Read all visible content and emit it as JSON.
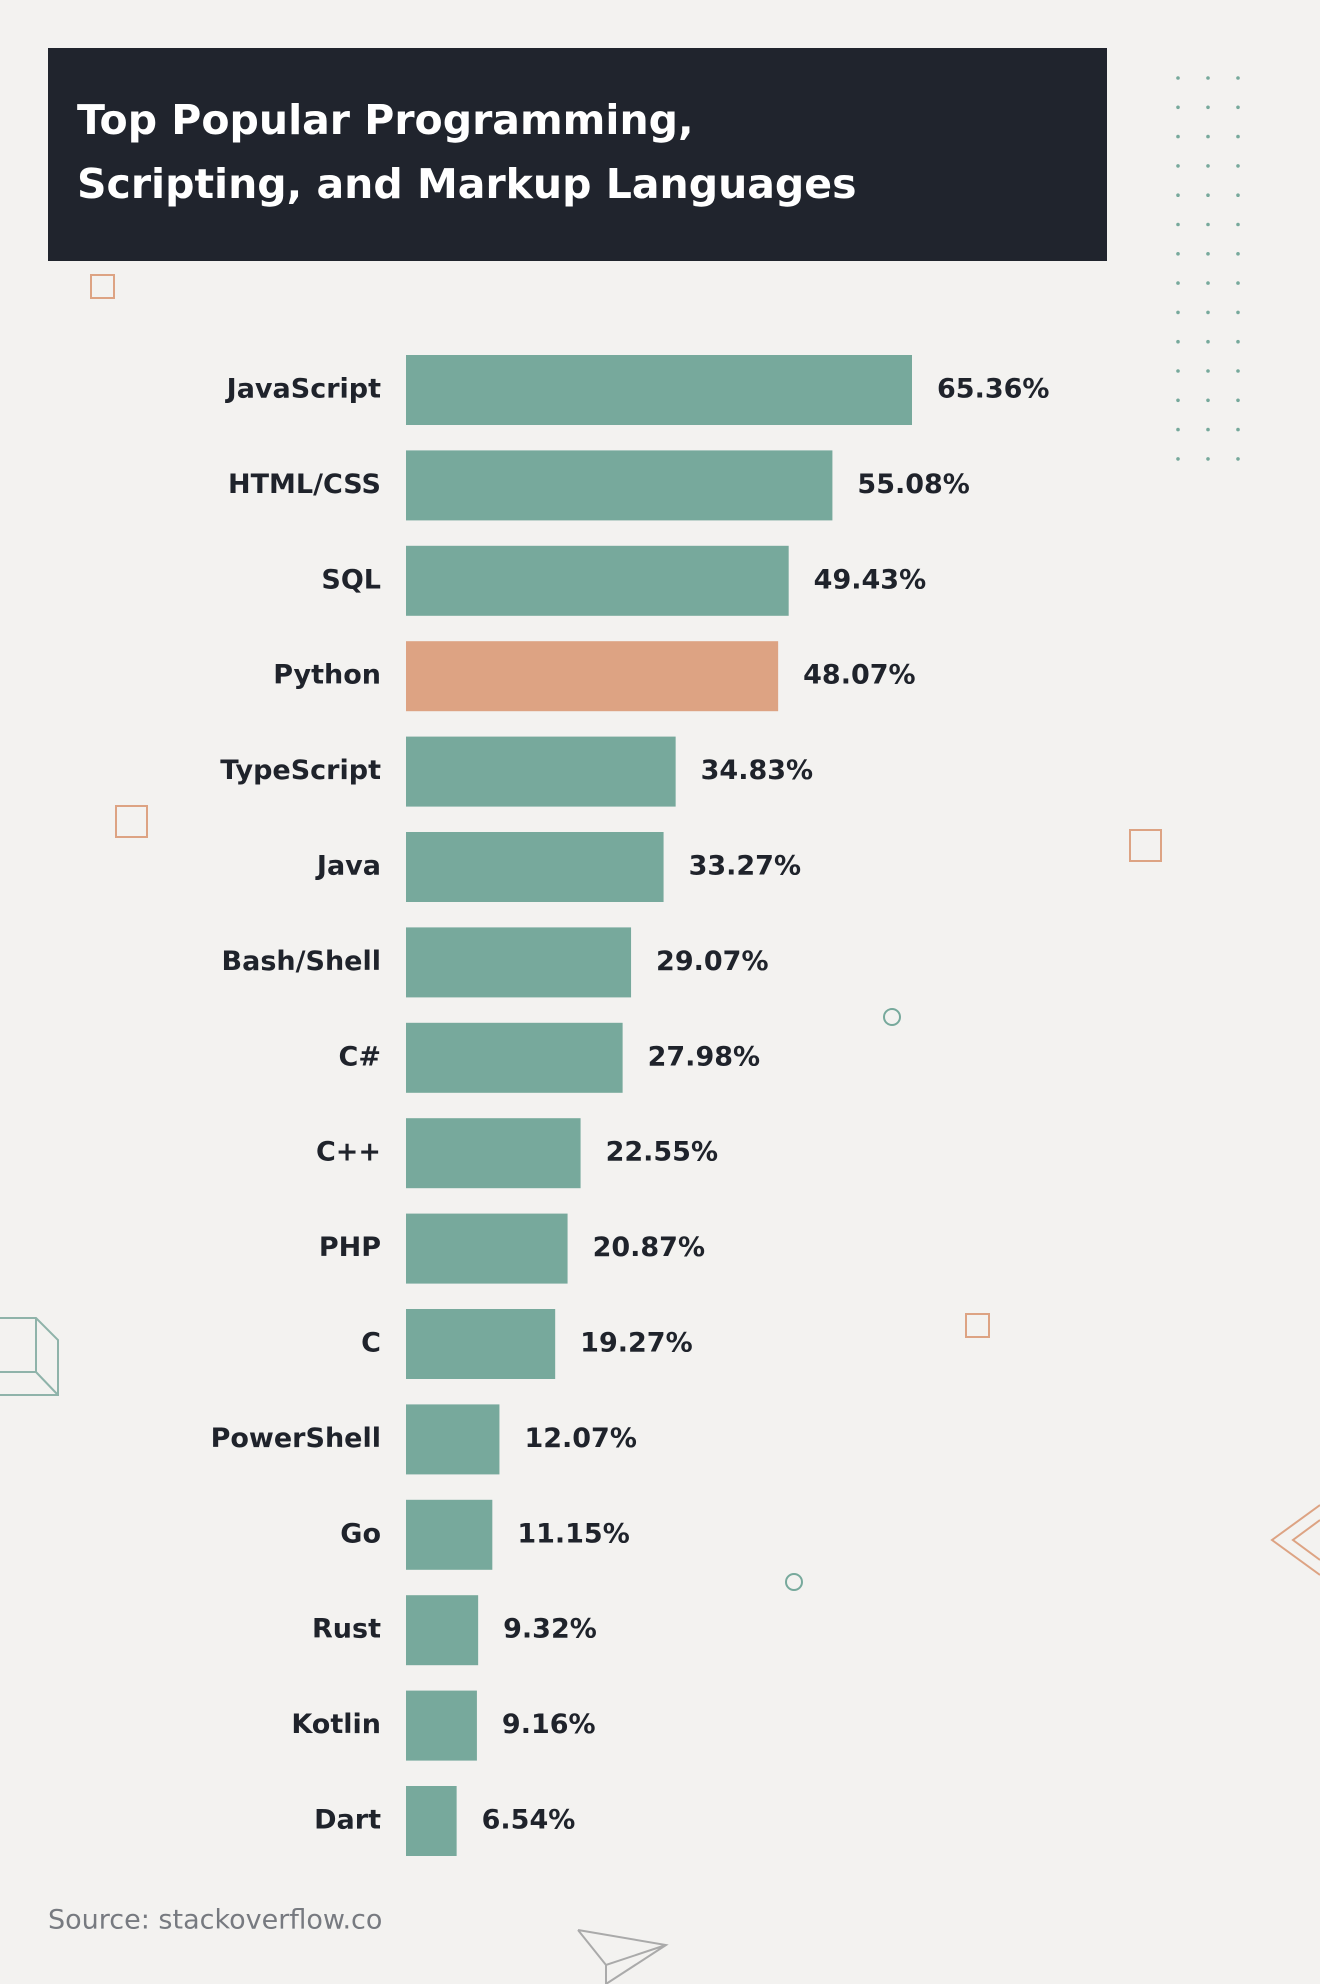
{
  "chart_data": {
    "type": "hbar",
    "title": [
      "Top Popular Programming,",
      "Scripting, and Markup Languages"
    ],
    "categories": [
      "JavaScript",
      "HTML/CSS",
      "SQL",
      "Python",
      "TypeScript",
      "Java",
      "Bash/Shell",
      "C#",
      "C++",
      "PHP",
      "C",
      "PowerShell",
      "Go",
      "Rust",
      "Kotlin",
      "Dart"
    ],
    "values": [
      65.36,
      55.08,
      49.43,
      48.07,
      34.83,
      33.27,
      29.07,
      27.98,
      22.55,
      20.87,
      19.27,
      12.07,
      11.15,
      9.32,
      9.16,
      6.54
    ],
    "value_labels": [
      "65.36%",
      "55.08%",
      "49.43%",
      "48.07%",
      "34.83%",
      "33.27%",
      "29.07%",
      "27.98%",
      "22.55%",
      "20.87%",
      "19.27%",
      "12.07%",
      "11.15%",
      "9.32%",
      "9.16%",
      "6.54%"
    ],
    "colors": [
      "#77a99c",
      "#77a99c",
      "#77a99c",
      "#dda383",
      "#77a99c",
      "#77a99c",
      "#77a99c",
      "#77a99c",
      "#77a99c",
      "#77a99c",
      "#77a99c",
      "#77a99c",
      "#77a99c",
      "#77a99c",
      "#77a99c",
      "#77a99c"
    ],
    "source": "Source: stackoverflow.co"
  }
}
